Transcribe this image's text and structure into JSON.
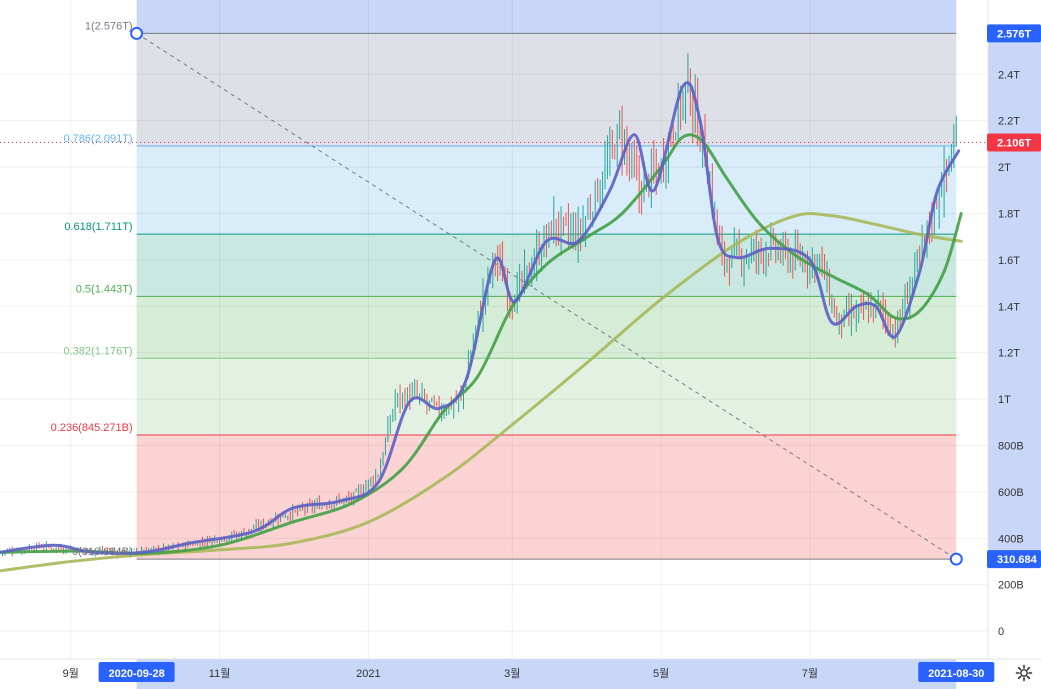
{
  "chart_data": {
    "type": "line",
    "title": "",
    "price_axis": {
      "ticks": [
        {
          "label": "0",
          "value": 0
        },
        {
          "label": "200B",
          "value": 200
        },
        {
          "label": "400B",
          "value": 400
        },
        {
          "label": "600B",
          "value": 600
        },
        {
          "label": "800B",
          "value": 800
        },
        {
          "label": "1T",
          "value": 1000
        },
        {
          "label": "1.2T",
          "value": 1200
        },
        {
          "label": "1.4T",
          "value": 1400
        },
        {
          "label": "1.6T",
          "value": 1600
        },
        {
          "label": "1.8T",
          "value": 1800
        },
        {
          "label": "2T",
          "value": 2000
        },
        {
          "label": "2.2T",
          "value": 2200
        },
        {
          "label": "2.4T",
          "value": 2400
        }
      ],
      "range": [
        -120,
        2720
      ],
      "unit": "B"
    },
    "time_axis": {
      "ticks": [
        {
          "label": "9월",
          "date": "2020-09-01"
        },
        {
          "label": "11월",
          "date": "2020-11-01"
        },
        {
          "label": "2021",
          "date": "2021-01-01"
        },
        {
          "label": "3월",
          "date": "2021-03-01"
        },
        {
          "label": "5월",
          "date": "2021-05-01"
        },
        {
          "label": "7월",
          "date": "2021-07-01"
        }
      ],
      "range": [
        "2020-08-03",
        "2021-09-12"
      ]
    },
    "fibonacci": {
      "start": {
        "date": "2020-09-28",
        "value": 2576,
        "label": "2020-09-28"
      },
      "end": {
        "date": "2021-08-30",
        "value": 310.684,
        "label": "2021-08-30"
      },
      "levels": [
        {
          "ratio": 1,
          "value": 2576,
          "label": "1(2.576T)",
          "color": "#787b86"
        },
        {
          "ratio": 0.786,
          "value": 2091,
          "label": "0.786(2.091T)",
          "color": "#64b5f6"
        },
        {
          "ratio": 0.618,
          "value": 1711,
          "label": "0.618(1.711T)",
          "color": "#089981"
        },
        {
          "ratio": 0.5,
          "value": 1443,
          "label": "0.5(1.443T)",
          "color": "#4caf50"
        },
        {
          "ratio": 0.382,
          "value": 1176,
          "label": "0.382(1.176T)",
          "color": "#81c784"
        },
        {
          "ratio": 0.236,
          "value": 845.271,
          "label": "0.236(845.271B)",
          "color": "#f23645"
        },
        {
          "ratio": 0,
          "value": 310.684,
          "label": "0(310.684B)",
          "color": "#787b86"
        }
      ]
    },
    "price_badges": [
      {
        "label": "2.576T",
        "value": 2576,
        "color": "#2962ff"
      },
      {
        "label": "2.106T",
        "value": 2106,
        "color": "#f23645"
      },
      {
        "label": "310.684",
        "value": 310.684,
        "color": "#2962ff"
      }
    ],
    "current_price": 2106,
    "series": [
      {
        "kind": "candles",
        "color_up": "#26a69a",
        "color_down": "#ef5350",
        "close_anchors": [
          [
            "2020-08-03",
            340
          ],
          [
            "2020-08-20",
            365
          ],
          [
            "2020-09-05",
            350
          ],
          [
            "2020-09-20",
            340
          ],
          [
            "2020-10-10",
            355
          ],
          [
            "2020-10-25",
            385
          ],
          [
            "2020-11-10",
            420
          ],
          [
            "2020-11-25",
            490
          ],
          [
            "2020-12-10",
            540
          ],
          [
            "2020-12-25",
            570
          ],
          [
            "2021-01-05",
            680
          ],
          [
            "2021-01-12",
            1000
          ],
          [
            "2021-01-20",
            1020
          ],
          [
            "2021-01-30",
            950
          ],
          [
            "2021-02-08",
            1000
          ],
          [
            "2021-02-15",
            1350
          ],
          [
            "2021-02-22",
            1620
          ],
          [
            "2021-03-01",
            1420
          ],
          [
            "2021-03-10",
            1600
          ],
          [
            "2021-03-18",
            1750
          ],
          [
            "2021-03-28",
            1700
          ],
          [
            "2021-04-05",
            1900
          ],
          [
            "2021-04-14",
            2150
          ],
          [
            "2021-04-22",
            1900
          ],
          [
            "2021-05-01",
            2000
          ],
          [
            "2021-05-08",
            2250
          ],
          [
            "2021-05-12",
            2350
          ],
          [
            "2021-05-19",
            2050
          ],
          [
            "2021-05-26",
            1600
          ],
          [
            "2021-06-05",
            1620
          ],
          [
            "2021-06-15",
            1650
          ],
          [
            "2021-06-25",
            1600
          ],
          [
            "2021-07-05",
            1600
          ],
          [
            "2021-07-12",
            1330
          ],
          [
            "2021-07-21",
            1370
          ],
          [
            "2021-07-29",
            1400
          ],
          [
            "2021-08-05",
            1290
          ],
          [
            "2021-08-10",
            1450
          ],
          [
            "2021-08-16",
            1650
          ],
          [
            "2021-08-23",
            1900
          ],
          [
            "2021-08-30",
            2106
          ]
        ]
      },
      {
        "kind": "moving-average",
        "name": "",
        "color": "#5b5fc7",
        "points": [
          [
            "2020-08-03",
            340
          ],
          [
            "2020-08-25",
            370
          ],
          [
            "2020-09-10",
            340
          ],
          [
            "2020-10-01",
            340
          ],
          [
            "2020-10-20",
            380
          ],
          [
            "2020-11-15",
            430
          ],
          [
            "2020-12-01",
            530
          ],
          [
            "2020-12-20",
            560
          ],
          [
            "2021-01-05",
            640
          ],
          [
            "2021-01-18",
            990
          ],
          [
            "2021-01-30",
            960
          ],
          [
            "2021-02-10",
            1080
          ],
          [
            "2021-02-22",
            1600
          ],
          [
            "2021-03-02",
            1420
          ],
          [
            "2021-03-15",
            1680
          ],
          [
            "2021-03-28",
            1680
          ],
          [
            "2021-04-10",
            1900
          ],
          [
            "2021-04-20",
            2140
          ],
          [
            "2021-04-28",
            1900
          ],
          [
            "2021-05-10",
            2350
          ],
          [
            "2021-05-17",
            2200
          ],
          [
            "2021-05-24",
            1700
          ],
          [
            "2021-06-01",
            1610
          ],
          [
            "2021-06-15",
            1650
          ],
          [
            "2021-07-01",
            1600
          ],
          [
            "2021-07-10",
            1330
          ],
          [
            "2021-07-20",
            1400
          ],
          [
            "2021-07-28",
            1400
          ],
          [
            "2021-08-05",
            1270
          ],
          [
            "2021-08-15",
            1550
          ],
          [
            "2021-08-22",
            1890
          ],
          [
            "2021-08-31",
            2070
          ]
        ]
      },
      {
        "kind": "moving-average",
        "name": "",
        "color": "#43a047",
        "points": [
          [
            "2020-08-03",
            340
          ],
          [
            "2020-09-05",
            345
          ],
          [
            "2020-10-01",
            335
          ],
          [
            "2020-11-01",
            370
          ],
          [
            "2020-12-01",
            470
          ],
          [
            "2020-12-25",
            550
          ],
          [
            "2021-01-15",
            700
          ],
          [
            "2021-02-01",
            950
          ],
          [
            "2021-02-15",
            1100
          ],
          [
            "2021-03-01",
            1400
          ],
          [
            "2021-03-15",
            1580
          ],
          [
            "2021-04-01",
            1700
          ],
          [
            "2021-04-15",
            1800
          ],
          [
            "2021-05-01",
            2000
          ],
          [
            "2021-05-10",
            2130
          ],
          [
            "2021-05-18",
            2110
          ],
          [
            "2021-05-28",
            1950
          ],
          [
            "2021-06-10",
            1760
          ],
          [
            "2021-06-25",
            1620
          ],
          [
            "2021-07-10",
            1530
          ],
          [
            "2021-07-25",
            1450
          ],
          [
            "2021-08-05",
            1350
          ],
          [
            "2021-08-15",
            1380
          ],
          [
            "2021-08-25",
            1550
          ],
          [
            "2021-09-01",
            1800
          ]
        ]
      },
      {
        "kind": "moving-average",
        "name": "",
        "color": "#a7b85a",
        "points": [
          [
            "2020-08-03",
            260
          ],
          [
            "2020-09-01",
            300
          ],
          [
            "2020-10-01",
            330
          ],
          [
            "2020-11-01",
            350
          ],
          [
            "2020-12-01",
            380
          ],
          [
            "2021-01-01",
            470
          ],
          [
            "2021-02-01",
            660
          ],
          [
            "2021-03-01",
            890
          ],
          [
            "2021-04-01",
            1160
          ],
          [
            "2021-05-01",
            1430
          ],
          [
            "2021-06-01",
            1670
          ],
          [
            "2021-06-25",
            1790
          ],
          [
            "2021-07-10",
            1790
          ],
          [
            "2021-07-25",
            1760
          ],
          [
            "2021-08-15",
            1710
          ],
          [
            "2021-09-01",
            1680
          ]
        ]
      }
    ],
    "grid": true,
    "legend": "none"
  },
  "toolbar": {
    "settings_icon": "gear-icon"
  }
}
